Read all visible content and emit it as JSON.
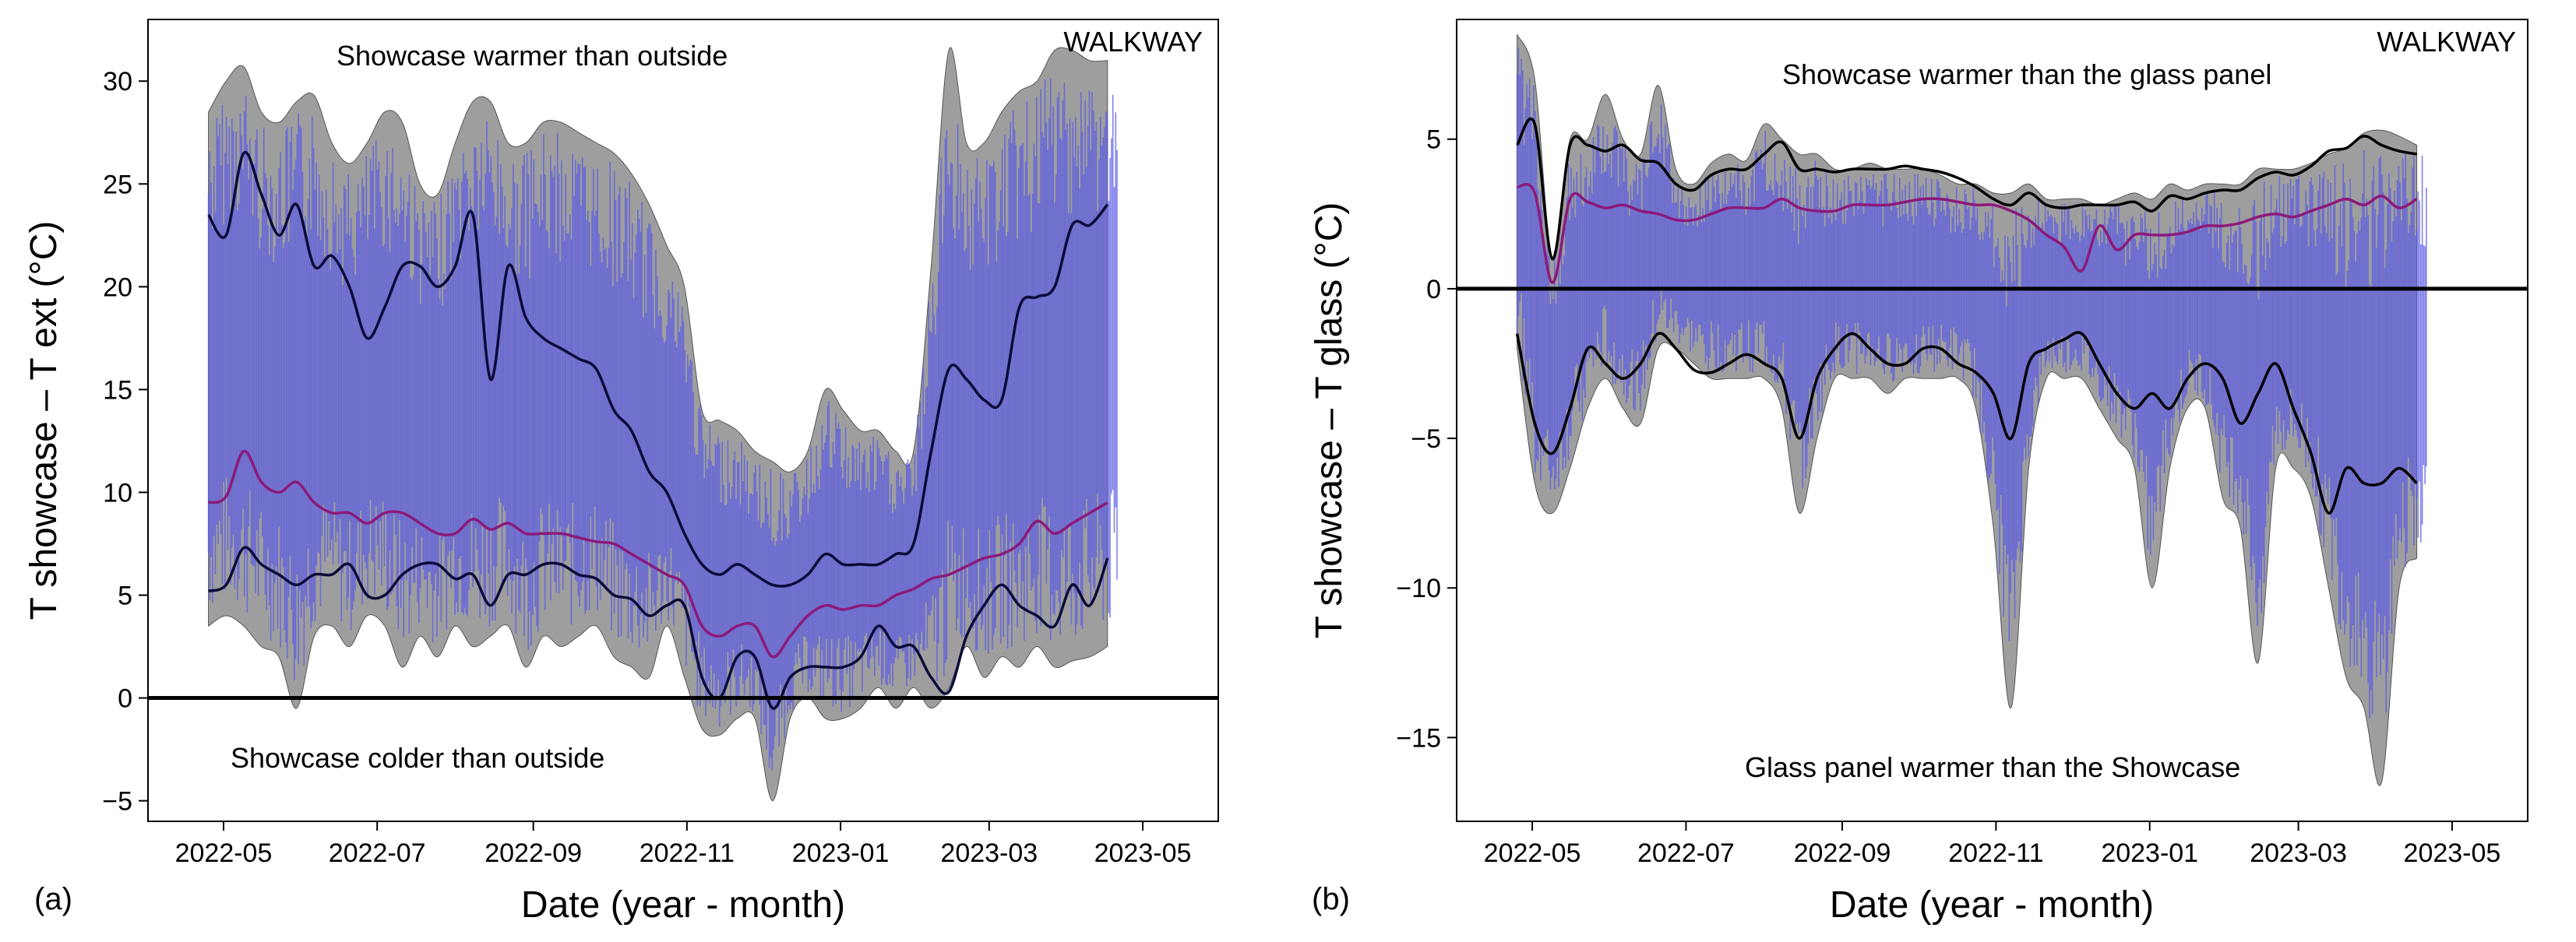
{
  "chart_data": [
    {
      "panel": "(a)",
      "type": "area",
      "title": "",
      "corner_label": "WALKWAY",
      "xlabel": "Date (year - month)",
      "ylabel": "T showcase – T ext (°C)",
      "x_range": [
        "2022-04-01",
        "2023-05-31"
      ],
      "ylim": [
        -6,
        33
      ],
      "x_ticks": [
        {
          "date": "2022-05-01",
          "label": "2022-05"
        },
        {
          "date": "2022-07-01",
          "label": "2022-07"
        },
        {
          "date": "2022-09-01",
          "label": "2022-09"
        },
        {
          "date": "2022-11-01",
          "label": "2022-11"
        },
        {
          "date": "2023-01-01",
          "label": "2023-01"
        },
        {
          "date": "2023-03-01",
          "label": "2023-03"
        },
        {
          "date": "2023-05-01",
          "label": "2023-05"
        }
      ],
      "y_ticks": [
        {
          "value": -5,
          "label": "−5"
        },
        {
          "value": 0,
          "label": "0"
        },
        {
          "value": 5,
          "label": "5"
        },
        {
          "value": 10,
          "label": "10"
        },
        {
          "value": 15,
          "label": "15"
        },
        {
          "value": 20,
          "label": "20"
        },
        {
          "value": 25,
          "label": "25"
        },
        {
          "value": 30,
          "label": "30"
        }
      ],
      "reference_line_y": 0,
      "annotations": [
        {
          "text": "Showcase warmer than outside",
          "anchor": "upper-left"
        },
        {
          "text": "Showcase colder than outside",
          "anchor": "lower-left"
        }
      ],
      "dates": [
        "2022-04-25",
        "2022-05-02",
        "2022-05-09",
        "2022-05-16",
        "2022-05-23",
        "2022-05-30",
        "2022-06-06",
        "2022-06-13",
        "2022-06-20",
        "2022-06-27",
        "2022-07-04",
        "2022-07-11",
        "2022-07-18",
        "2022-07-25",
        "2022-08-01",
        "2022-08-08",
        "2022-08-15",
        "2022-08-22",
        "2022-08-29",
        "2022-09-05",
        "2022-09-12",
        "2022-09-19",
        "2022-09-26",
        "2022-10-03",
        "2022-10-10",
        "2022-10-17",
        "2022-10-24",
        "2022-10-31",
        "2022-11-07",
        "2022-11-14",
        "2022-11-21",
        "2022-11-28",
        "2022-12-05",
        "2022-12-12",
        "2022-12-19",
        "2022-12-26",
        "2023-01-02",
        "2023-01-09",
        "2023-01-16",
        "2023-01-23",
        "2023-01-30",
        "2023-02-06",
        "2023-02-13",
        "2023-02-20",
        "2023-02-27",
        "2023-03-06",
        "2023-03-13",
        "2023-03-20",
        "2023-03-27",
        "2023-04-03",
        "2023-04-10",
        "2023-04-17"
      ],
      "series": [
        {
          "name": "envelope-max",
          "color": "#9e9e9e",
          "values": [
            28.5,
            30,
            30.7,
            28.5,
            28,
            29,
            29.3,
            27,
            26,
            27,
            28.5,
            28,
            25,
            24.5,
            27,
            29,
            29,
            27,
            27,
            28,
            28,
            27.5,
            27,
            26.5,
            25.5,
            24,
            22,
            20,
            14,
            13.5,
            13,
            12,
            11.5,
            11,
            12,
            15,
            14,
            13,
            13,
            12,
            12,
            21,
            31.5,
            27,
            27,
            28.5,
            29.5,
            30,
            31.5,
            31.5,
            31,
            31
          ]
        },
        {
          "name": "envelope-min",
          "color": "#9e9e9e",
          "values": [
            3.5,
            4,
            3.5,
            2.5,
            2,
            -0.5,
            3,
            3.5,
            2.5,
            4,
            3.5,
            1.5,
            3,
            2,
            3.5,
            2.5,
            3,
            3.5,
            1.5,
            3,
            2.5,
            3,
            3.5,
            2,
            1.5,
            1,
            3.5,
            1,
            -1.5,
            -1.8,
            -1,
            -1,
            -5,
            -1,
            0,
            -1,
            -1,
            -0.5,
            0.5,
            -0.5,
            0.5,
            -0.5,
            0.5,
            2.5,
            1,
            2,
            1.5,
            2.5,
            1.5,
            1.8,
            2,
            2.5
          ]
        },
        {
          "name": "upper-smooth",
          "color": "#0b0b3a",
          "values": [
            23.5,
            22.5,
            26.5,
            24.5,
            22.5,
            24,
            21,
            21.5,
            20,
            17.5,
            19,
            21,
            21,
            20,
            21,
            23.5,
            15.5,
            21,
            18.5,
            17.5,
            17,
            16.5,
            16,
            14,
            13,
            11,
            10,
            8,
            6.5,
            6,
            6.5,
            6,
            5.5,
            5.5,
            6,
            7,
            6.5,
            6.5,
            6.5,
            7,
            7.5,
            12,
            16,
            15.5,
            14.5,
            14.5,
            19,
            19.5,
            20,
            23,
            23,
            24
          ]
        },
        {
          "name": "mean-smooth",
          "color": "#8b1a7a",
          "values": [
            9.5,
            9.8,
            12,
            10.5,
            10,
            10.5,
            9.5,
            9,
            9,
            8.5,
            9,
            9,
            8.5,
            8,
            8,
            8.7,
            8.2,
            8.5,
            8,
            8,
            8,
            7.8,
            7.6,
            7.5,
            7,
            6.5,
            6,
            5.5,
            3.5,
            3,
            3.5,
            3.5,
            2,
            3,
            4,
            4.5,
            4.3,
            4.5,
            4.5,
            5,
            5.3,
            5.8,
            6,
            6.4,
            6.8,
            7,
            7.5,
            8.6,
            8,
            8.5,
            9,
            9.5
          ]
        },
        {
          "name": "lower-smooth",
          "color": "#0b0b3a",
          "values": [
            5.2,
            5.5,
            7.3,
            6.5,
            6,
            5.5,
            6,
            6,
            6.5,
            5,
            5,
            6,
            6.5,
            6.5,
            5.8,
            6,
            4.5,
            6,
            6,
            6.5,
            6.5,
            6,
            5.8,
            5,
            4.8,
            4,
            4.5,
            4.5,
            1,
            0,
            2,
            2,
            -0.5,
            1,
            1.5,
            1.5,
            1.5,
            2,
            3.5,
            2.5,
            2.5,
            1,
            0.3,
            3,
            4.5,
            5.5,
            4.5,
            4,
            3.5,
            5.5,
            4.5,
            6.8
          ]
        }
      ],
      "raw_data_color": "#5a5ae6"
    },
    {
      "panel": "(b)",
      "type": "area",
      "title": "",
      "corner_label": "WALKWAY",
      "xlabel": "Date (year - month)",
      "ylabel": "T showcase – T glass (°C)",
      "x_range": [
        "2022-04-01",
        "2023-05-31"
      ],
      "ylim": [
        -17.8,
        9
      ],
      "x_ticks": [
        {
          "date": "2022-05-01",
          "label": "2022-05"
        },
        {
          "date": "2022-07-01",
          "label": "2022-07"
        },
        {
          "date": "2022-09-01",
          "label": "2022-09"
        },
        {
          "date": "2022-11-01",
          "label": "2022-11"
        },
        {
          "date": "2023-01-01",
          "label": "2023-01"
        },
        {
          "date": "2023-03-01",
          "label": "2023-03"
        },
        {
          "date": "2023-05-01",
          "label": "2023-05"
        }
      ],
      "y_ticks": [
        {
          "value": -15,
          "label": "−15"
        },
        {
          "value": -10,
          "label": "−10"
        },
        {
          "value": -5,
          "label": "−5"
        },
        {
          "value": 0,
          "label": "0"
        },
        {
          "value": 5,
          "label": "5"
        }
      ],
      "reference_line_y": 0,
      "annotations": [
        {
          "text": "Showcase warmer than the glass panel",
          "anchor": "upper-center"
        },
        {
          "text": "Glass panel warmer than the Showcase",
          "anchor": "lower-center"
        }
      ],
      "dates": [
        "2022-04-25",
        "2022-05-02",
        "2022-05-09",
        "2022-05-16",
        "2022-05-23",
        "2022-05-30",
        "2022-06-06",
        "2022-06-13",
        "2022-06-20",
        "2022-06-27",
        "2022-07-04",
        "2022-07-11",
        "2022-07-18",
        "2022-07-25",
        "2022-08-01",
        "2022-08-08",
        "2022-08-15",
        "2022-08-22",
        "2022-08-29",
        "2022-09-05",
        "2022-09-12",
        "2022-09-19",
        "2022-09-26",
        "2022-10-03",
        "2022-10-10",
        "2022-10-17",
        "2022-10-24",
        "2022-10-31",
        "2022-11-07",
        "2022-11-14",
        "2022-11-21",
        "2022-11-28",
        "2022-12-05",
        "2022-12-12",
        "2022-12-19",
        "2022-12-26",
        "2023-01-02",
        "2023-01-09",
        "2023-01-16",
        "2023-01-23",
        "2023-01-30",
        "2023-02-06",
        "2023-02-13",
        "2023-02-20",
        "2023-02-27",
        "2023-03-06",
        "2023-03-13",
        "2023-03-20",
        "2023-03-27",
        "2023-04-03",
        "2023-04-10",
        "2023-04-17"
      ],
      "series": [
        {
          "name": "envelope-max",
          "color": "#9e9e9e",
          "values": [
            8.5,
            7,
            1,
            5,
            5,
            6.5,
            5,
            4.5,
            6.8,
            4,
            3.5,
            4.2,
            4.5,
            4.3,
            5.5,
            5,
            4.5,
            4.5,
            4,
            4,
            4.2,
            4,
            4,
            4,
            3.8,
            3.5,
            3.5,
            3.2,
            3.2,
            3.5,
            3,
            3,
            3,
            2.8,
            3,
            3.2,
            3,
            3.5,
            3.3,
            3.5,
            3.5,
            3.5,
            4,
            4,
            4,
            4.2,
            4.5,
            4.7,
            5.2,
            5.3,
            5.1,
            4.8
          ]
        },
        {
          "name": "envelope-min",
          "color": "#9e9e9e",
          "values": [
            -2,
            -6.5,
            -7.5,
            -6,
            -4,
            -3,
            -4,
            -4.5,
            -2,
            -2,
            -2.5,
            -3,
            -3,
            -3,
            -3,
            -4,
            -7.5,
            -5,
            -3,
            -3,
            -3,
            -3.5,
            -3,
            -3,
            -3,
            -3,
            -4,
            -8,
            -14,
            -6,
            -3,
            -3,
            -3,
            -4,
            -5,
            -6,
            -10,
            -6,
            -4,
            -4,
            -7,
            -8,
            -12.5,
            -6,
            -6,
            -7,
            -10,
            -13,
            -14,
            -16.5,
            -10,
            -9
          ]
        },
        {
          "name": "upper-smooth",
          "color": "#000000",
          "values": [
            4.8,
            5.5,
            1,
            4.8,
            4.8,
            4.6,
            4.8,
            4.3,
            4.2,
            3.5,
            3.3,
            3.8,
            4,
            4,
            4.5,
            4.9,
            4,
            4,
            3.9,
            4,
            4,
            4,
            4.1,
            4,
            3.9,
            3.7,
            3.4,
            3,
            2.8,
            3.2,
            2.8,
            2.7,
            2.8,
            2.8,
            2.8,
            2.9,
            2.6,
            3.1,
            3,
            3.2,
            3.3,
            3.3,
            3.7,
            3.9,
            3.8,
            4.1,
            4.6,
            4.7,
            5.1,
            4.8,
            4.6,
            4.5
          ]
        },
        {
          "name": "mean-smooth",
          "color": "#8b1a7a",
          "values": [
            3.4,
            3.2,
            0.2,
            3,
            2.9,
            2.7,
            2.8,
            2.6,
            2.5,
            2.3,
            2.3,
            2.5,
            2.7,
            2.7,
            2.7,
            3,
            2.7,
            2.6,
            2.6,
            2.8,
            2.8,
            2.8,
            2.9,
            3,
            3,
            2.9,
            2.8,
            2.8,
            2.6,
            2.3,
            1.8,
            1.4,
            0.6,
            2.1,
            1.3,
            1.8,
            1.8,
            1.8,
            1.9,
            2.1,
            2.1,
            2.2,
            2.4,
            2.5,
            2.4,
            2.6,
            2.8,
            3,
            2.8,
            3.1,
            2.7,
            3
          ]
        },
        {
          "name": "lower-smooth",
          "color": "#000000",
          "values": [
            -1.5,
            -4.5,
            -5.5,
            -4,
            -2,
            -2.5,
            -3,
            -2.5,
            -1.5,
            -2,
            -2.7,
            -2.8,
            -2.5,
            -2.2,
            -2.5,
            -3,
            -5,
            -3,
            -2,
            -1.5,
            -2,
            -2.5,
            -2.5,
            -2,
            -2,
            -2.5,
            -2.8,
            -3.5,
            -5,
            -2.5,
            -2,
            -1.7,
            -1.5,
            -2.5,
            -3.5,
            -4,
            -3.5,
            -4,
            -3,
            -2.5,
            -3,
            -4.5,
            -3.5,
            -2.5,
            -4,
            -5.5,
            -7.5,
            -6,
            -6.5,
            -6.5,
            -6,
            -6.5
          ]
        }
      ],
      "raw_data_color": "#5a5ae6"
    }
  ]
}
